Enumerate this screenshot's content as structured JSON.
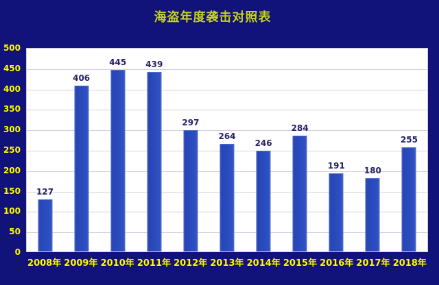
{
  "page": {
    "title": "海盗年度袭击对照表"
  },
  "chart_data": {
    "type": "bar",
    "title": "海盗年度袭击对照表",
    "categories": [
      "2008年",
      "2009年",
      "2010年",
      "2011年",
      "2012年",
      "2013年",
      "2014年",
      "2015年",
      "2016年",
      "2017年",
      "2018年"
    ],
    "values": [
      127,
      406,
      445,
      439,
      297,
      264,
      246,
      284,
      191,
      180,
      255
    ],
    "xlabel": "",
    "ylabel": "",
    "ylim": [
      0,
      500
    ],
    "yticks": [
      0,
      50,
      100,
      150,
      200,
      250,
      300,
      350,
      400,
      450,
      500
    ],
    "grid": true,
    "legend": "none",
    "data_labels": true,
    "colors": {
      "background": "#12127b",
      "plot_bg": "#ffffff",
      "plot_border": "#cfc8d8",
      "gridline": "#d5cede",
      "bar": "#2a4bbd",
      "title_text": "#c5d32a",
      "axis_text": "#ffff00",
      "data_label": "#232266"
    }
  }
}
